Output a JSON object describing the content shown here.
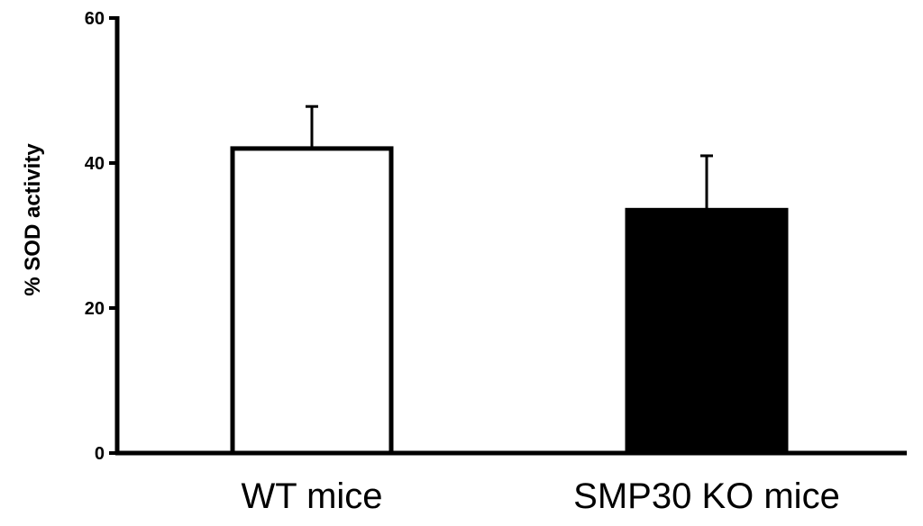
{
  "chart_data": {
    "type": "bar",
    "title": "",
    "xlabel": "",
    "ylabel": "% SOD activity",
    "ylim": [
      0,
      60
    ],
    "yticks": [
      0,
      20,
      40,
      60
    ],
    "grid": false,
    "categories": [
      "WT mice",
      "SMP30 KO mice"
    ],
    "values": [
      42,
      33.5
    ],
    "errors": [
      5.8,
      7.5
    ],
    "fill_colors": [
      "#ffffff",
      "#000000"
    ],
    "edge_color": "#000000"
  }
}
